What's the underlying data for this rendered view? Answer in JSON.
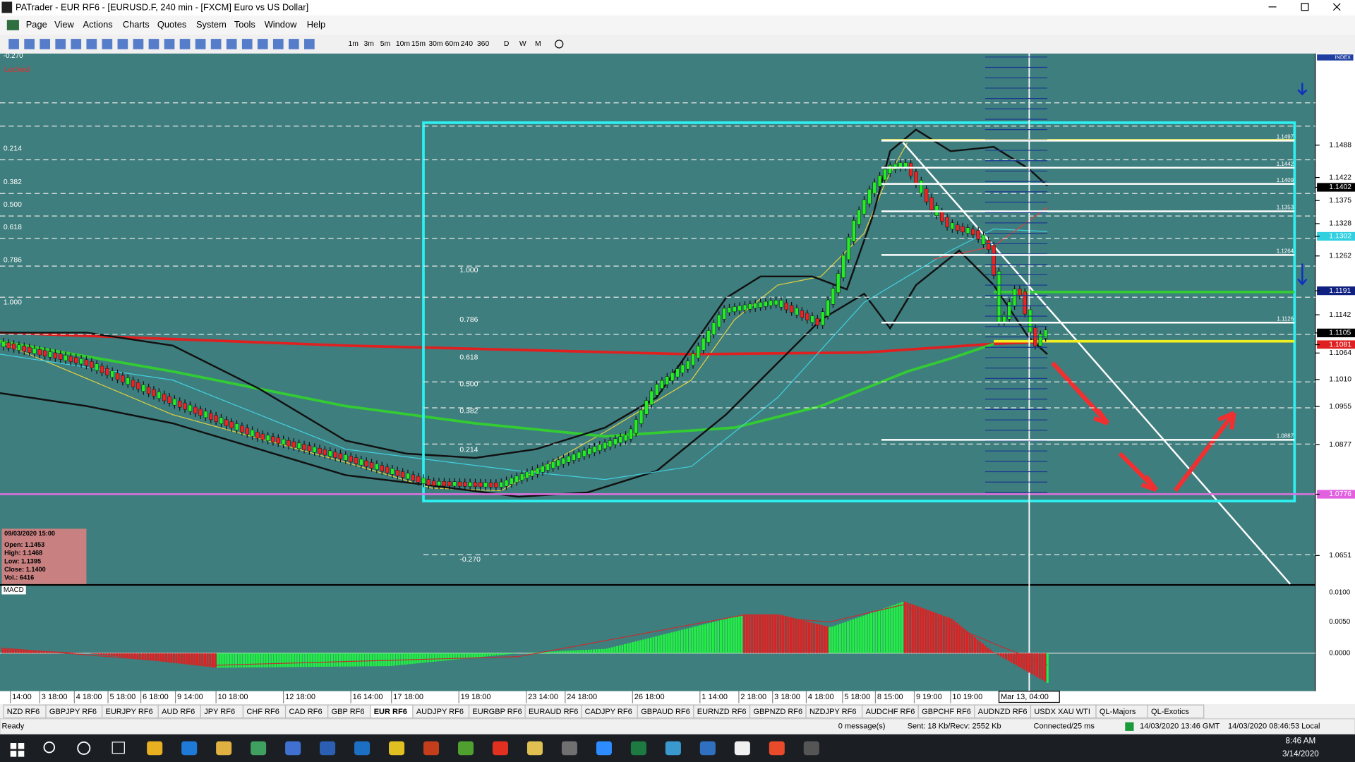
{
  "window": {
    "title": "PATrader - EUR RF6 - [EURUSD.F, 240 min - [FXCM] Euro vs US Dollar]",
    "menu": [
      "Page",
      "View",
      "Actions",
      "Charts",
      "Quotes",
      "System",
      "Tools",
      "Window",
      "Help"
    ]
  },
  "toolbar": {
    "timeframes": [
      "1m",
      "3m",
      "5m",
      "10m",
      "15m",
      "30m",
      "60m",
      "240",
      "360",
      "D",
      "W",
      "M"
    ]
  },
  "chart": {
    "status": "Locked",
    "top_fib": "-0.270",
    "left_fib": [
      "0.214",
      "0.382",
      "0.500",
      "0.618",
      "0.786",
      "1.000"
    ],
    "box_fib": [
      "1.000",
      "0.786",
      "0.618",
      "0.500",
      "0.382",
      "0.214",
      "-0.270"
    ],
    "index_label": "INDEX",
    "price_labels": [
      "1.1488",
      "1.1422",
      "1.1402",
      "1.1375",
      "1.1328",
      "1.1302",
      "1.1262",
      "1.1191",
      "1.1142",
      "1.1105",
      "1.1081",
      "1.1064",
      "1.1010",
      "1.0955",
      "1.0877",
      "1.0776",
      "1.0651"
    ],
    "pivot_levels": [
      "1.1497",
      "1.1442",
      "1.1409",
      "1.1353",
      "1.1264",
      "1.1126",
      "1.0887"
    ],
    "info": {
      "date": "09/03/2020 15:00",
      "lines": [
        "Open: 1.1453",
        "High: 1.1468",
        "Low: 1.1395",
        "Close: 1.1400",
        "Vol.: 6416"
      ]
    },
    "macd": {
      "label": "MACD",
      "axis": [
        "0.0100",
        "0.0050",
        "0.0000"
      ]
    },
    "time_axis": [
      "14:00",
      "3 18:00",
      "4 18:00",
      "5 18:00",
      "6 18:00",
      "9 14:00",
      "10 18:00",
      "12 18:00",
      "16 14:00",
      "17 18:00",
      "19 18:00",
      "23 14:00",
      "24 18:00",
      "26 18:00",
      "1 14:00",
      "2 18:00",
      "3 18:00",
      "4 18:00",
      "5 18:00",
      "8 15:00",
      "9 19:00",
      "10 19:00",
      "Mar 13, 04:00"
    ]
  },
  "tabs": [
    "NZD RF6",
    "GBPJPY RF6",
    "EURJPY RF6",
    "AUD RF6",
    "JPY RF6",
    "CHF RF6",
    "CAD RF6",
    "GBP RF6",
    "EUR RF6",
    "AUDJPY RF6",
    "EURGBP RF6",
    "EURAUD RF6",
    "CADJPY RF6",
    "GBPAUD RF6",
    "EURNZD RF6",
    "GBPNZD RF6",
    "NZDJPY RF6",
    "AUDCHF RF6",
    "GBPCHF RF6",
    "AUDNZD RF6",
    "USDX XAU WTI",
    "QL-Majors",
    "QL-Exotics"
  ],
  "status_bar": {
    "state": "Ready",
    "messages": "0 message(s)",
    "traffic": "Sent: 18 Kb/Recv: 2552 Kb",
    "connection": "Connected/25 ms",
    "gmt": "14/03/2020 13:46 GMT",
    "local": "14/03/2020 08:46:53 Local"
  },
  "taskbar": {
    "time": "8:46 AM",
    "date": "3/14/2020"
  }
}
